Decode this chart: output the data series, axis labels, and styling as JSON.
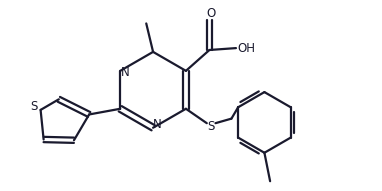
{
  "bg_color": "#ffffff",
  "line_color": "#1a1a2e",
  "line_width": 1.6,
  "figsize": [
    3.82,
    1.91
  ],
  "dpi": 100,
  "xlim": [
    0,
    10
  ],
  "ylim": [
    0,
    5
  ]
}
